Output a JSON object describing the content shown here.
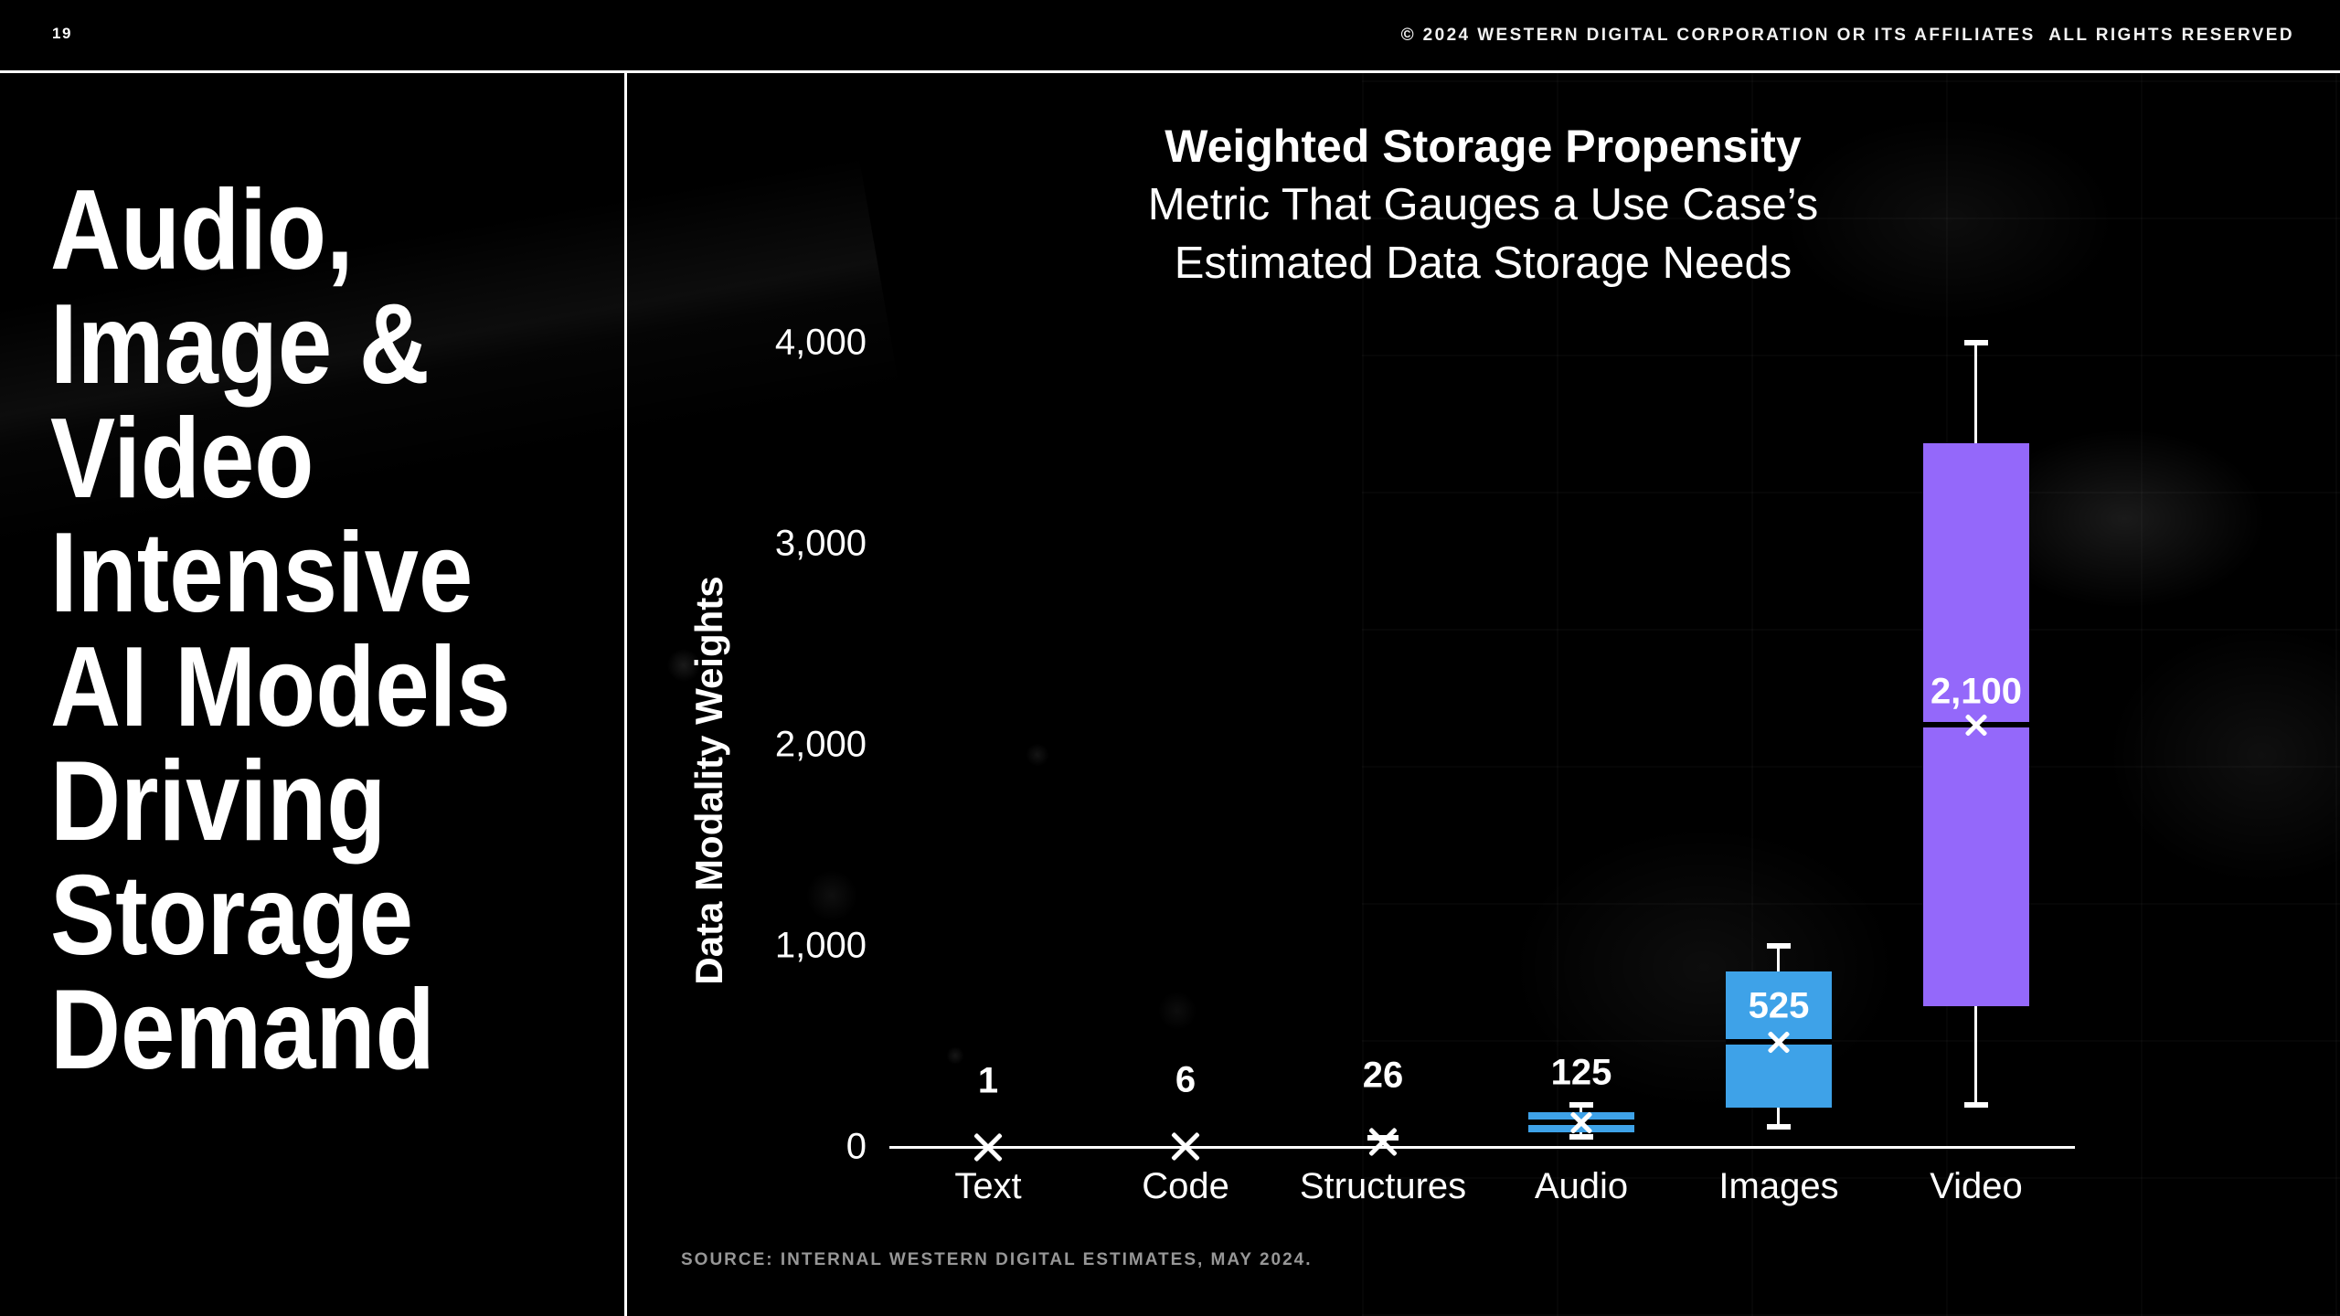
{
  "header": {
    "page_number": "19",
    "copyright": "© 2024 WESTERN DIGITAL CORPORATION OR ITS AFFILIATES  ALL RIGHTS RESERVED"
  },
  "headline": {
    "lines": [
      "Audio,",
      "Image &",
      "Video",
      "Intensive",
      "AI Models",
      "Driving",
      "Storage",
      "Demand"
    ]
  },
  "chart": {
    "title": "Weighted Storage Propensity",
    "subtitle_lines": [
      "Metric That Gauges a Use Case’s",
      "Estimated Data Storage Needs"
    ],
    "y_axis_title": "Data Modality Weights",
    "source": "SOURCE: INTERNAL WESTERN DIGITAL ESTIMATES, MAY 2024."
  },
  "chart_data": {
    "type": "boxplot",
    "title": "Weighted Storage Propensity",
    "subtitle": "Metric That Gauges a Use Case’s Estimated Data Storage Needs",
    "ylabel": "Data Modality Weights",
    "ylim": [
      0,
      4000
    ],
    "grid": false,
    "yticks": [
      {
        "value": 0,
        "label": "0"
      },
      {
        "value": 1000,
        "label": "1,000"
      },
      {
        "value": 2000,
        "label": "2,000"
      },
      {
        "value": 3000,
        "label": "3,000"
      },
      {
        "value": 4000,
        "label": "4,000"
      }
    ],
    "categories": [
      "Text",
      "Code",
      "Structures",
      "Audio",
      "Images",
      "Video"
    ],
    "series": [
      {
        "category": "Text",
        "value_label": "1",
        "mean": 1,
        "style": "marker"
      },
      {
        "category": "Code",
        "value_label": "6",
        "mean": 6,
        "style": "marker"
      },
      {
        "category": "Structures",
        "value_label": "26",
        "mean": 26,
        "style": "marker-box",
        "whisker_high": 45
      },
      {
        "category": "Audio",
        "value_label": "125",
        "mean": 125,
        "q1": 75,
        "q3": 175,
        "whisker_low": 50,
        "whisker_high": 210,
        "box_color": "#3EA2E8",
        "label_pos": "above-whisker"
      },
      {
        "category": "Images",
        "value_label": "525",
        "mean": 525,
        "q1": 200,
        "q3": 875,
        "whisker_low": 100,
        "whisker_high": 1000,
        "box_color": "#3EA2E8",
        "label_pos": "upper-box"
      },
      {
        "category": "Video",
        "value_label": "2,100",
        "mean": 2100,
        "q1": 700,
        "q3": 3500,
        "whisker_low": 210,
        "whisker_high": 4000,
        "box_color": "#9468FA",
        "label_pos": "above-median"
      }
    ],
    "colors": {
      "blue_box": "#3EA2E8",
      "purple_box": "#9468FA",
      "median_line": "#000000",
      "mean_marker": "#FFFFFF",
      "axis": "#FFFFFF",
      "source_text": "#979797"
    }
  }
}
